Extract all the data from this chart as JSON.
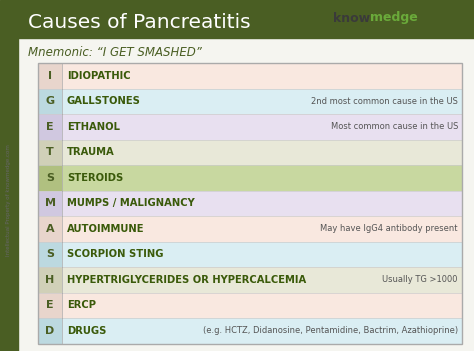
{
  "title": "Causes of Pancreatitis",
  "mnemonic": "Mnemonic: “I GET SMASHED”",
  "bg_color": "#f5f5f0",
  "header_color": "#4a5e23",
  "title_color": "#3a3a3a",
  "left_bar_color": "#4a5e23",
  "table_border_color": "#aaaaaa",
  "rows": [
    {
      "letter": "I",
      "text": "IDIOPATHIC",
      "note": "",
      "row_color": "#f9e8e0",
      "letter_bg": "#e8d5cc"
    },
    {
      "letter": "G",
      "text": "GALLSTONES",
      "note": "2nd most common cause in the US",
      "note_superscript": true,
      "row_color": "#daeef3",
      "letter_bg": "#bcd9e0"
    },
    {
      "letter": "E",
      "text": "ETHANOL",
      "note": "Most common cause in the US",
      "row_color": "#e8e0f0",
      "letter_bg": "#d0c8e0"
    },
    {
      "letter": "T",
      "text": "TRAUMA",
      "note": "",
      "row_color": "#e8e8d8",
      "letter_bg": "#d0d0b8"
    },
    {
      "letter": "S",
      "text": "STEROIDS",
      "note": "",
      "row_color": "#c8d8a0",
      "letter_bg": "#b0c080"
    },
    {
      "letter": "M",
      "text": "MUMPS / MALIGNANCY",
      "note": "",
      "row_color": "#e8e0f0",
      "letter_bg": "#d0c8e0"
    },
    {
      "letter": "A",
      "text": "AUTOIMMUNE",
      "note": "May have IgG4 antibody present",
      "row_color": "#f9e8e0",
      "letter_bg": "#e8d5cc"
    },
    {
      "letter": "S",
      "text": "SCORPION STING",
      "note": "",
      "row_color": "#daeef3",
      "letter_bg": "#bcd9e0"
    },
    {
      "letter": "H",
      "text": "HYPERTRIGLYCERIDES OR HYPERCALCEMIA",
      "note": "Usually TG >1000",
      "row_color": "#e8e8d8",
      "letter_bg": "#d0d0b8"
    },
    {
      "letter": "E",
      "text": "ERCP",
      "note": "",
      "row_color": "#f9e8e0",
      "letter_bg": "#e8d5cc"
    },
    {
      "letter": "D",
      "text": "DRUGS",
      "note": "(e.g. HCTZ, Didanosine, Pentamidine, Bactrim, Azathioprine)",
      "row_color": "#daeef3",
      "letter_bg": "#bcd9e0"
    }
  ],
  "watermark": "Intellectual Property of knowmedge.com",
  "knowmedge_text": "knowmedge",
  "know_color": "#3a3a3a",
  "medge_color": "#6aaa3a",
  "text_color": "#3a5a0a",
  "note_color": "#555555"
}
